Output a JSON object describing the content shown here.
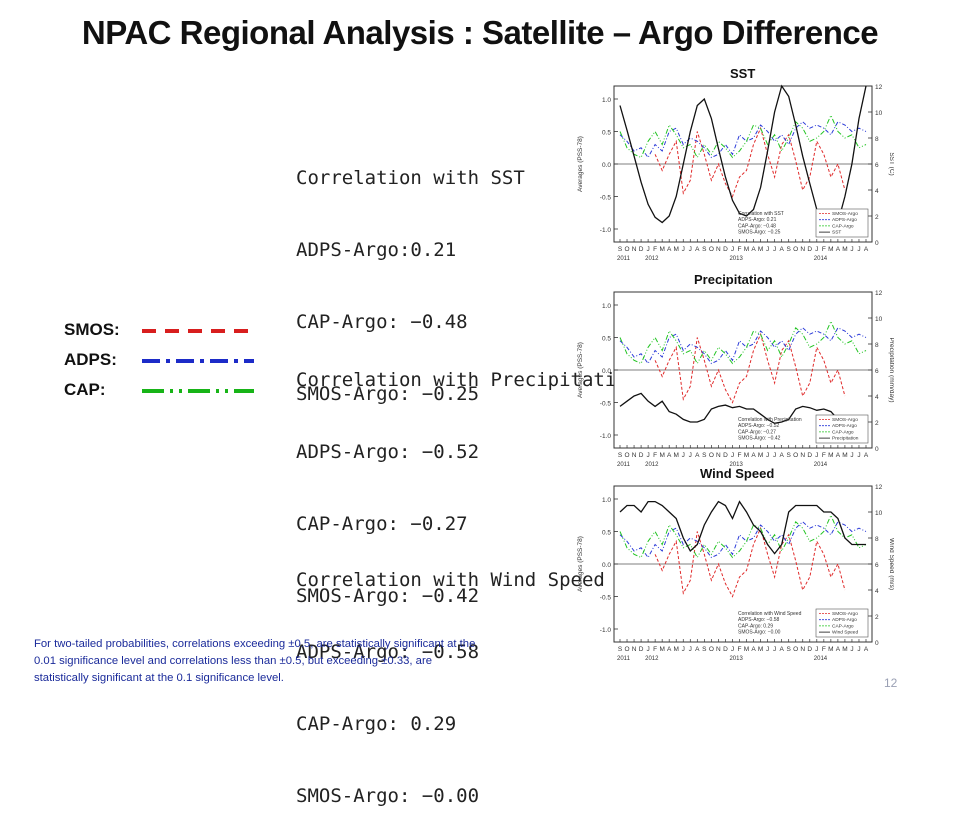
{
  "slide": {
    "title": "NPAC Regional Analysis :  Satellite – Argo Difference",
    "page_number": "12",
    "footnote": "For two-tailed probabilities, correlations exceeding ±0.5, are statistically significant at the 0.01 significance level and correlations less than ±0.5, but exceeding  ±0.33, are statistically significant at the 0.1 significance level."
  },
  "legend": {
    "items": [
      {
        "label": "SMOS:",
        "color": "#d81e1e",
        "dash": "14 9"
      },
      {
        "label": "ADPS:",
        "color": "#1c2bc8",
        "dash": "18 6 4 6"
      },
      {
        "label": "CAP:",
        "color": "#17b417",
        "dash": "22 6 3 6 3 6"
      }
    ]
  },
  "correlations": [
    {
      "title": "Correlation with SST",
      "lines": [
        "ADPS-Argo:0.21",
        "CAP-Argo: −0.48",
        "SMOS-Argo: −0.25"
      ]
    },
    {
      "title": "Correlation with Precipitation",
      "lines": [
        "ADPS-Argo: −0.52",
        "CAP-Argo: −0.27",
        "SMOS-Argo: −0.42"
      ]
    },
    {
      "title": "Correlation with Wind Speed",
      "lines": [
        "ADPS-Argo: −0.58",
        "CAP-Argo: 0.29",
        "SMOS-Argo: −0.00"
      ]
    }
  ],
  "chart_data": [
    {
      "type": "line",
      "title": "SST",
      "ylabel": "Averages (PSS-78)",
      "ylabel_right": "SST (C)",
      "ylim": [
        -1.2,
        1.2
      ],
      "yticks": [
        "1.0",
        "0.5",
        "0.0",
        "-0.5",
        "-1.0"
      ],
      "ylim_right": [
        0,
        12
      ],
      "yticks_right": [
        "0",
        "2",
        "4",
        "6",
        "8",
        "10",
        "12"
      ],
      "x": [
        "S",
        "O",
        "N",
        "D",
        "J",
        "F",
        "M",
        "A",
        "M",
        "J",
        "J",
        "A",
        "S",
        "O",
        "N",
        "D",
        "J",
        "F",
        "M",
        "A",
        "M",
        "J",
        "J",
        "A",
        "S",
        "O",
        "N",
        "D",
        "J",
        "F",
        "M",
        "A",
        "M",
        "J",
        "J",
        "A"
      ],
      "year_labels": [
        {
          "label": "2011",
          "index": 0
        },
        {
          "label": "2012",
          "index": 4
        },
        {
          "label": "2013",
          "index": 16
        },
        {
          "label": "2014",
          "index": 28
        }
      ],
      "inset": {
        "lines": [
          "Correlation with SST",
          "ADPS-Argo: 0.21",
          "CAP-Argo: −0.48",
          "SMOS-Argo: −0.25"
        ]
      },
      "legend_entries": [
        "SMOS-Argo",
        "ADPS-Argo",
        "CAP-Argo",
        "SST"
      ],
      "series": [
        {
          "name": "SMOS-Argo",
          "values": [
            null,
            null,
            null,
            null,
            null,
            0.15,
            -0.1,
            0.15,
            0.35,
            -0.45,
            -0.25,
            0.5,
            0.15,
            -0.25,
            0.0,
            -0.3,
            -0.5,
            -0.2,
            -0.1,
            0.3,
            0.55,
            0.15,
            -0.2,
            0.3,
            0.45,
            0.05,
            -0.4,
            -0.2,
            0.35,
            0.15,
            -0.2,
            0.0,
            -0.4,
            null,
            null,
            null
          ]
        },
        {
          "name": "ADPS-Argo",
          "values": [
            0.45,
            0.35,
            0.2,
            0.25,
            0.1,
            0.3,
            0.2,
            0.5,
            0.55,
            0.3,
            0.4,
            0.35,
            0.25,
            0.1,
            0.15,
            0.3,
            0.15,
            0.45,
            0.35,
            0.4,
            0.6,
            0.5,
            0.35,
            0.45,
            0.3,
            0.55,
            0.65,
            0.55,
            0.6,
            0.55,
            0.45,
            0.65,
            0.6,
            0.5,
            0.55,
            0.5
          ]
        },
        {
          "name": "CAP-Argo",
          "values": [
            0.5,
            0.25,
            0.15,
            0.1,
            0.35,
            0.5,
            0.3,
            0.6,
            0.45,
            0.25,
            0.3,
            0.1,
            0.3,
            0.15,
            0.35,
            0.25,
            0.1,
            0.2,
            0.35,
            0.6,
            0.55,
            0.3,
            0.45,
            0.2,
            0.4,
            0.65,
            0.55,
            0.35,
            0.4,
            0.5,
            0.75,
            0.5,
            0.4,
            0.45,
            0.25,
            0.3
          ]
        },
        {
          "name": "SST",
          "axis": "right",
          "values": [
            10.5,
            8.6,
            6.6,
            4.6,
            2.9,
            1.9,
            1.5,
            2.0,
            3.5,
            6.0,
            8.5,
            10.5,
            11.0,
            9.5,
            7.2,
            5.0,
            3.2,
            2.2,
            2.0,
            2.5,
            4.2,
            7.0,
            10.0,
            12.0,
            11.2,
            9.0,
            6.6,
            4.5,
            2.5,
            1.4,
            1.0,
            1.5,
            3.5,
            6.0,
            9.5,
            12.0
          ]
        }
      ]
    },
    {
      "type": "line",
      "title": "Precipitation",
      "ylabel": "Averages (PSS-78)",
      "ylabel_right": "Precipitation (mm/day)",
      "ylim": [
        -1.2,
        1.2
      ],
      "yticks": [
        "1.0",
        "0.5",
        "0.0",
        "-0.5",
        "-1.0"
      ],
      "ylim_right": [
        0,
        12
      ],
      "yticks_right": [
        "0",
        "2",
        "4",
        "6",
        "8",
        "10",
        "12"
      ],
      "x": [
        "S",
        "O",
        "N",
        "D",
        "J",
        "F",
        "M",
        "A",
        "M",
        "J",
        "J",
        "A",
        "S",
        "O",
        "N",
        "D",
        "J",
        "F",
        "M",
        "A",
        "M",
        "J",
        "J",
        "A",
        "S",
        "O",
        "N",
        "D",
        "J",
        "F",
        "M",
        "A",
        "M",
        "J",
        "J",
        "A"
      ],
      "year_labels": [
        {
          "label": "2011",
          "index": 0
        },
        {
          "label": "2012",
          "index": 4
        },
        {
          "label": "2013",
          "index": 16
        },
        {
          "label": "2014",
          "index": 28
        }
      ],
      "inset": {
        "lines": [
          "Correlation with Precipitation",
          "ADPS-Argo: −0.52",
          "CAP-Argo: −0.27",
          "SMOS-Argo: −0.42"
        ]
      },
      "legend_entries": [
        "SMOS-Argo",
        "ADPS-Argo",
        "CAP-Argo",
        "Precipitation"
      ],
      "series": [
        {
          "name": "SMOS-Argo",
          "values": [
            null,
            null,
            null,
            null,
            null,
            0.15,
            -0.1,
            0.15,
            0.35,
            -0.45,
            -0.25,
            0.5,
            0.15,
            -0.25,
            0.0,
            -0.3,
            -0.5,
            -0.2,
            -0.1,
            0.3,
            0.55,
            0.15,
            -0.2,
            0.3,
            0.45,
            0.05,
            -0.4,
            -0.2,
            0.35,
            0.15,
            -0.2,
            0.0,
            -0.4,
            null,
            null,
            null
          ]
        },
        {
          "name": "ADPS-Argo",
          "values": [
            0.45,
            0.35,
            0.2,
            0.25,
            0.1,
            0.3,
            0.2,
            0.5,
            0.55,
            0.3,
            0.4,
            0.35,
            0.25,
            0.1,
            0.15,
            0.3,
            0.15,
            0.45,
            0.35,
            0.4,
            0.6,
            0.5,
            0.35,
            0.45,
            0.3,
            0.55,
            0.65,
            0.55,
            0.6,
            0.55,
            0.45,
            0.65,
            0.6,
            0.5,
            0.55,
            0.5
          ]
        },
        {
          "name": "CAP-Argo",
          "values": [
            0.5,
            0.25,
            0.15,
            0.1,
            0.35,
            0.5,
            0.3,
            0.6,
            0.45,
            0.25,
            0.3,
            0.1,
            0.3,
            0.15,
            0.35,
            0.25,
            0.1,
            0.2,
            0.35,
            0.6,
            0.55,
            0.3,
            0.45,
            0.2,
            0.4,
            0.65,
            0.55,
            0.35,
            0.4,
            0.5,
            0.75,
            0.5,
            0.4,
            0.45,
            0.25,
            0.3
          ]
        },
        {
          "name": "Precipitation",
          "axis": "right",
          "values": [
            3.2,
            3.6,
            4.0,
            4.2,
            3.6,
            3.2,
            3.6,
            2.8,
            2.6,
            2.2,
            2.0,
            2.0,
            2.2,
            3.0,
            3.2,
            3.3,
            3.1,
            3.2,
            3.0,
            3.0,
            2.6,
            2.2,
            1.9,
            2.0,
            2.2,
            3.0,
            3.2,
            3.1,
            2.9,
            3.0,
            2.8,
            2.2,
            1.8,
            1.8,
            2.2,
            2.4
          ]
        }
      ]
    },
    {
      "type": "line",
      "title": "Wind Speed",
      "ylabel": "Averages (PSS-78)",
      "ylabel_right": "Wind Speed (m/s)",
      "ylim": [
        -1.2,
        1.2
      ],
      "yticks": [
        "1.0",
        "0.5",
        "0.0",
        "-0.5",
        "-1.0"
      ],
      "ylim_right": [
        0,
        12
      ],
      "yticks_right": [
        "0",
        "2",
        "4",
        "6",
        "8",
        "10",
        "12"
      ],
      "x": [
        "S",
        "O",
        "N",
        "D",
        "J",
        "F",
        "M",
        "A",
        "M",
        "J",
        "J",
        "A",
        "S",
        "O",
        "N",
        "D",
        "J",
        "F",
        "M",
        "A",
        "M",
        "J",
        "J",
        "A",
        "S",
        "O",
        "N",
        "D",
        "J",
        "F",
        "M",
        "A",
        "M",
        "J",
        "J",
        "A"
      ],
      "year_labels": [
        {
          "label": "2011",
          "index": 0
        },
        {
          "label": "2012",
          "index": 4
        },
        {
          "label": "2013",
          "index": 16
        },
        {
          "label": "2014",
          "index": 28
        }
      ],
      "inset": {
        "lines": [
          "Correlation with Wind Speed",
          "ADPS-Argo: −0.58",
          "CAP-Argo: 0.29",
          "SMOS-Argo: −0.00"
        ]
      },
      "legend_entries": [
        "SMOS-Argo",
        "ADPS-Argo",
        "CAP-Argo",
        "Wind Speed"
      ],
      "series": [
        {
          "name": "SMOS-Argo",
          "values": [
            null,
            null,
            null,
            null,
            null,
            0.15,
            -0.1,
            0.15,
            0.35,
            -0.45,
            -0.25,
            0.5,
            0.15,
            -0.25,
            0.0,
            -0.3,
            -0.5,
            -0.2,
            -0.1,
            0.3,
            0.55,
            0.15,
            -0.2,
            0.3,
            0.45,
            0.05,
            -0.4,
            -0.2,
            0.35,
            0.15,
            -0.2,
            0.0,
            -0.4,
            null,
            null,
            null
          ]
        },
        {
          "name": "ADPS-Argo",
          "values": [
            0.45,
            0.35,
            0.2,
            0.25,
            0.1,
            0.3,
            0.2,
            0.5,
            0.55,
            0.3,
            0.4,
            0.35,
            0.25,
            0.1,
            0.15,
            0.3,
            0.15,
            0.45,
            0.35,
            0.4,
            0.6,
            0.5,
            0.35,
            0.45,
            0.3,
            0.55,
            0.65,
            0.55,
            0.6,
            0.55,
            0.45,
            0.65,
            0.6,
            0.5,
            0.55,
            0.5
          ]
        },
        {
          "name": "CAP-Argo",
          "values": [
            0.5,
            0.25,
            0.15,
            0.1,
            0.35,
            0.5,
            0.3,
            0.6,
            0.45,
            0.25,
            0.3,
            0.1,
            0.3,
            0.15,
            0.35,
            0.25,
            0.1,
            0.2,
            0.35,
            0.6,
            0.55,
            0.3,
            0.45,
            0.2,
            0.4,
            0.65,
            0.55,
            0.35,
            0.4,
            0.5,
            0.75,
            0.5,
            0.4,
            0.45,
            0.25,
            0.3
          ]
        },
        {
          "name": "Wind Speed",
          "axis": "right",
          "values": [
            10.0,
            10.5,
            10.5,
            10.0,
            10.8,
            10.8,
            10.5,
            10.0,
            9.5,
            8.0,
            7.0,
            7.5,
            9.0,
            10.0,
            10.8,
            10.5,
            9.5,
            10.8,
            10.0,
            9.0,
            8.5,
            7.5,
            6.8,
            7.5,
            10.0,
            10.5,
            10.5,
            10.5,
            10.5,
            10.0,
            10.0,
            9.5,
            8.0,
            7.5,
            7.5,
            7.5
          ]
        }
      ]
    }
  ],
  "colors": {
    "smos": "#e02a2a",
    "adps": "#2a3ad8",
    "cap": "#22c422",
    "aux": "#111111"
  }
}
